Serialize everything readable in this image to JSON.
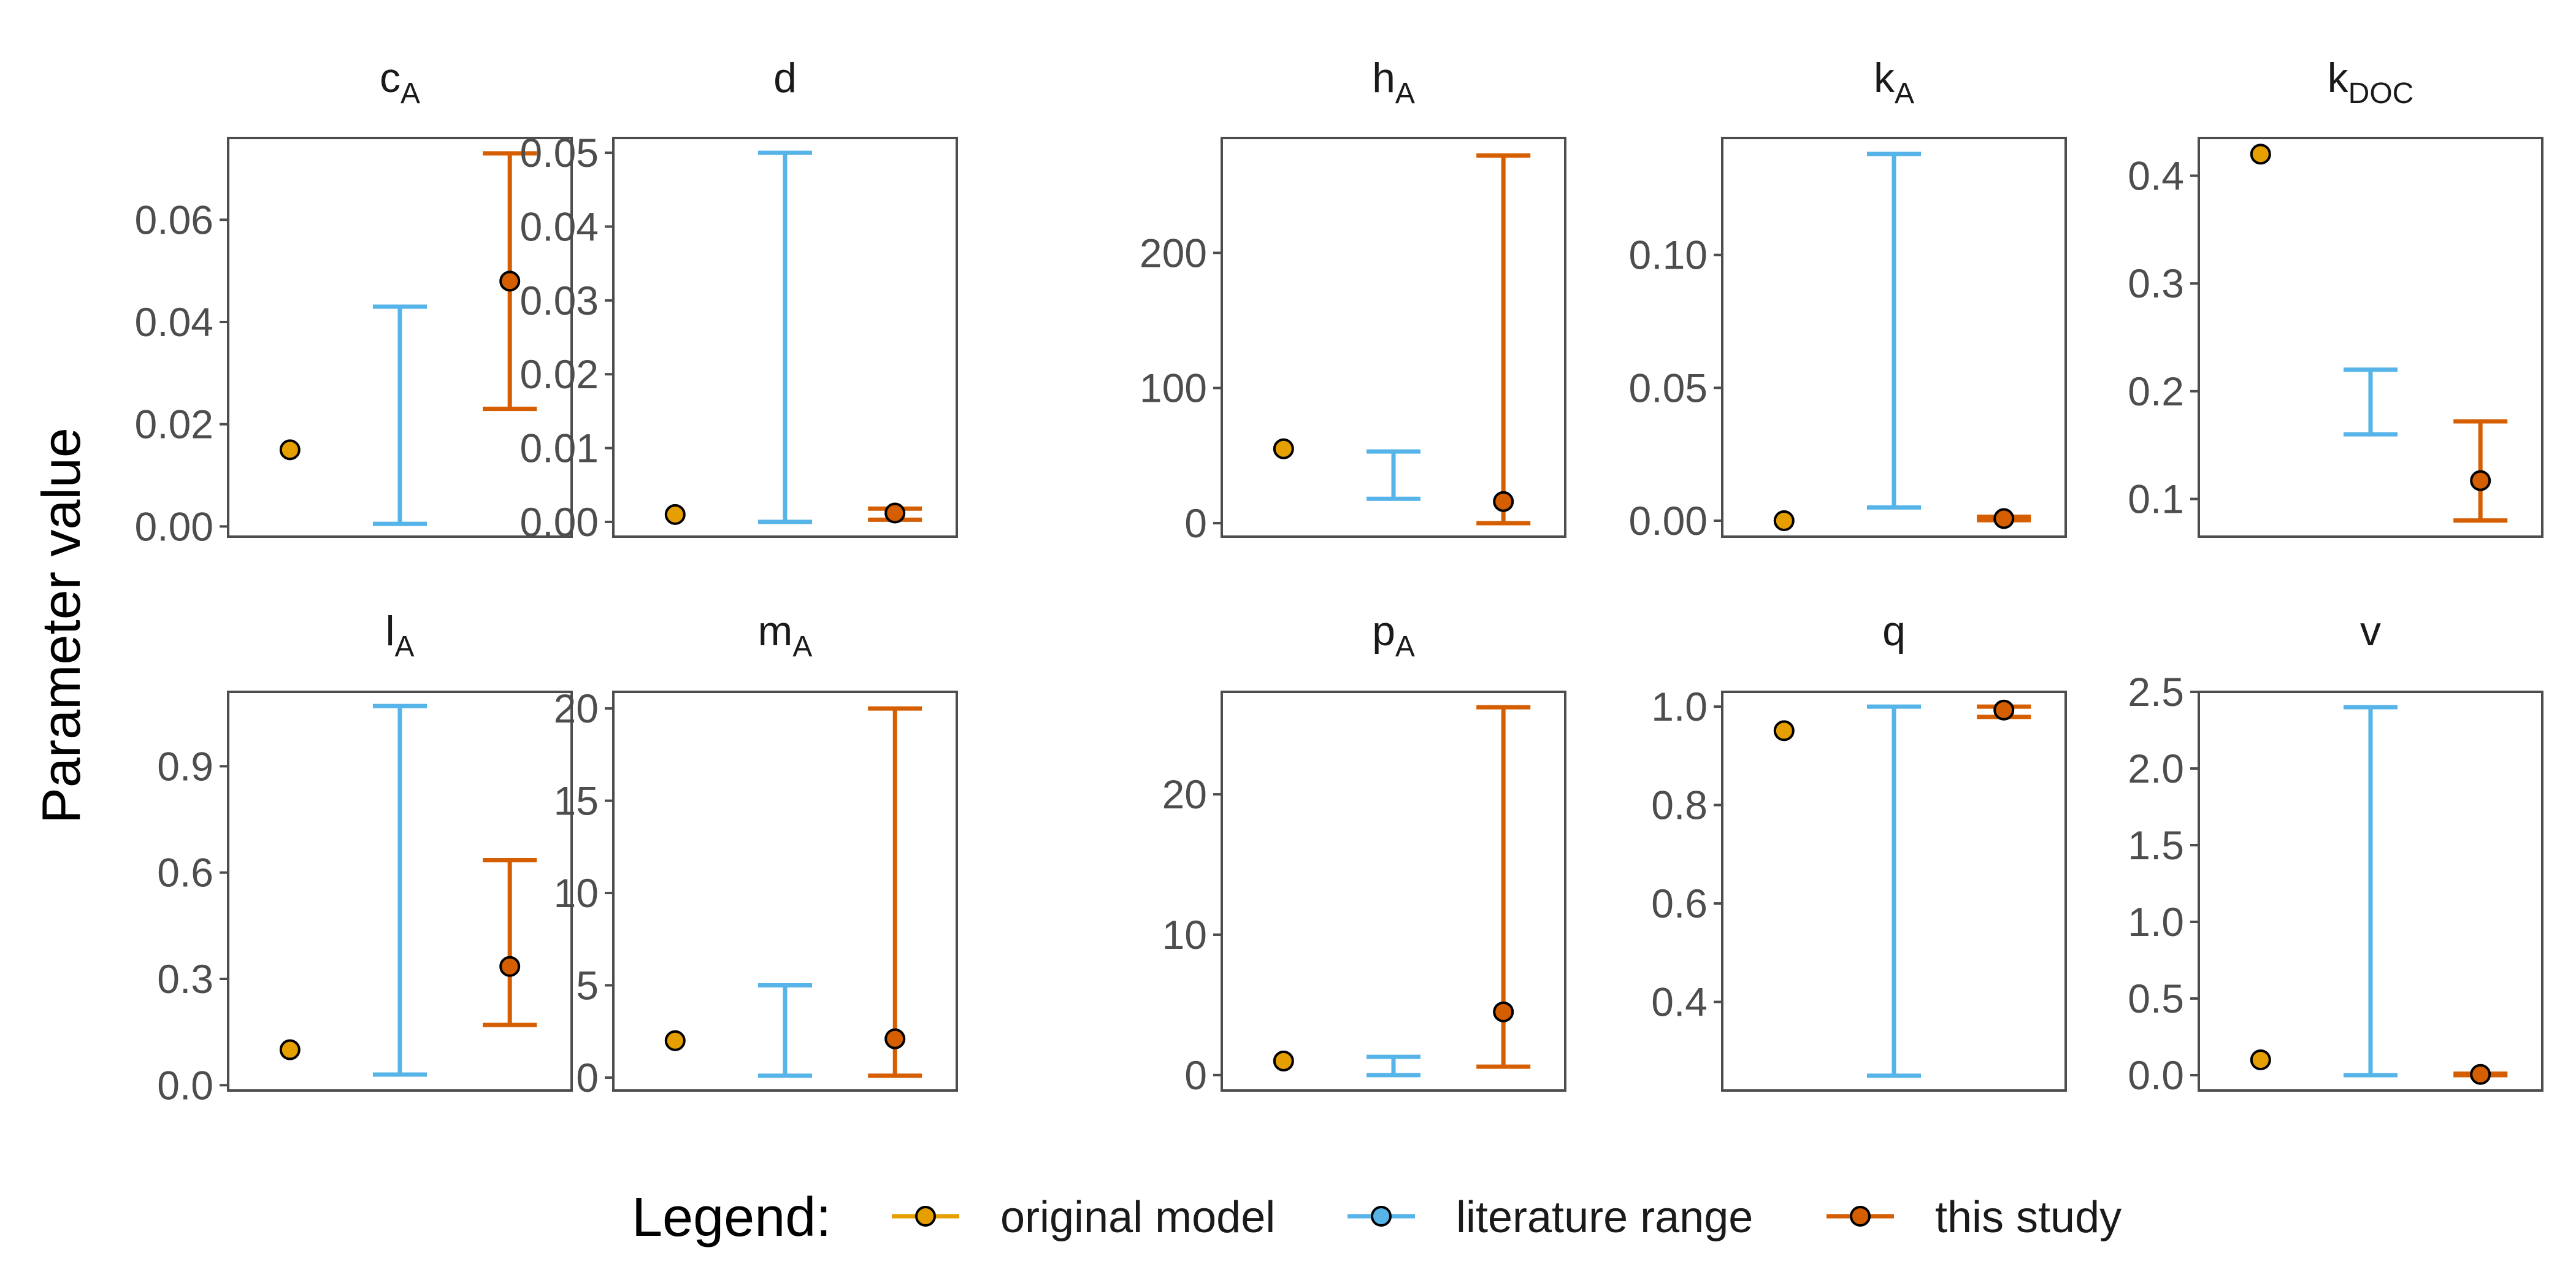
{
  "chart_data": {
    "type": "scatter",
    "ylabel": "Parameter value",
    "legend": {
      "title": "Legend:",
      "position": "bottom",
      "items": [
        {
          "key": "original",
          "label": "original model"
        },
        {
          "key": "literature",
          "label": "literature range"
        },
        {
          "key": "study",
          "label": "this study"
        }
      ]
    },
    "colors": {
      "original": "#E69F00",
      "literature": "#56B4E9",
      "study": "#D55E00",
      "axis": "#4d4d4d",
      "point_outline": "#000000"
    },
    "x_groups": [
      "original model",
      "literature range",
      "this study"
    ],
    "facets": [
      {
        "id": "cA",
        "title": "c",
        "subscript": "A",
        "ylim": [
          -0.002,
          0.076
        ],
        "ticks": [
          0.0,
          0.02,
          0.04,
          0.06
        ],
        "tick_labels": [
          "0.00",
          "0.02",
          "0.04",
          "0.06"
        ],
        "original": 0.015,
        "literature": [
          0.0005,
          0.043
        ],
        "study": {
          "value": 0.048,
          "min": 0.023,
          "max": 0.073
        }
      },
      {
        "id": "d",
        "title": "d",
        "subscript": "",
        "ylim": [
          -0.002,
          0.052
        ],
        "ticks": [
          0.0,
          0.01,
          0.02,
          0.03,
          0.04,
          0.05
        ],
        "tick_labels": [
          "0.00",
          "0.01",
          "0.02",
          "0.03",
          "0.04",
          "0.05"
        ],
        "original": 0.001,
        "literature": [
          0.0,
          0.05
        ],
        "study": {
          "value": 0.0012,
          "min": 0.0003,
          "max": 0.0018
        }
      },
      {
        "id": "hA",
        "title": "h",
        "subscript": "A",
        "ylim": [
          -10,
          285
        ],
        "ticks": [
          0,
          100,
          200
        ],
        "tick_labels": [
          "0",
          "100",
          "200"
        ],
        "original": 55,
        "literature": [
          18,
          53
        ],
        "study": {
          "value": 16,
          "min": 0,
          "max": 272
        }
      },
      {
        "id": "kA",
        "title": "k",
        "subscript": "A",
        "ylim": [
          -0.006,
          0.144
        ],
        "ticks": [
          0.0,
          0.05,
          0.1
        ],
        "tick_labels": [
          "0.00",
          "0.05",
          "0.10"
        ],
        "original": 0.0,
        "literature": [
          0.005,
          0.138
        ],
        "study": {
          "value": 0.0008,
          "min": 0.0002,
          "max": 0.0015
        }
      },
      {
        "id": "kDOC",
        "title": "k",
        "subscript": "DOC",
        "ylim": [
          0.065,
          0.435
        ],
        "ticks": [
          0.1,
          0.2,
          0.3,
          0.4
        ],
        "tick_labels": [
          "0.1",
          "0.2",
          "0.3",
          "0.4"
        ],
        "original": 0.42,
        "literature": [
          0.16,
          0.22
        ],
        "study": {
          "value": 0.117,
          "min": 0.08,
          "max": 0.172
        }
      },
      {
        "id": "lA",
        "title": "l",
        "subscript": "A",
        "ylim": [
          -0.015,
          1.11
        ],
        "ticks": [
          0.0,
          0.3,
          0.6,
          0.9
        ],
        "tick_labels": [
          "0.0",
          "0.3",
          "0.6",
          "0.9"
        ],
        "original": 0.1,
        "literature": [
          0.03,
          1.07
        ],
        "study": {
          "value": 0.335,
          "min": 0.17,
          "max": 0.635
        }
      },
      {
        "id": "mA",
        "title": "m",
        "subscript": "A",
        "ylim": [
          -0.7,
          20.9
        ],
        "ticks": [
          0,
          5,
          10,
          15,
          20
        ],
        "tick_labels": [
          "0",
          "5",
          "10",
          "15",
          "20"
        ],
        "original": 2.0,
        "literature": [
          0.1,
          5.0
        ],
        "study": {
          "value": 2.1,
          "min": 0.1,
          "max": 20.0
        }
      },
      {
        "id": "pA",
        "title": "p",
        "subscript": "A",
        "ylim": [
          -1.1,
          27.3
        ],
        "ticks": [
          0,
          10,
          20
        ],
        "tick_labels": [
          "0",
          "10",
          "20"
        ],
        "original": 1.0,
        "literature": [
          0.0,
          1.3
        ],
        "study": {
          "value": 4.5,
          "min": 0.6,
          "max": 26.2
        }
      },
      {
        "id": "q",
        "title": "q",
        "subscript": "",
        "ylim": [
          0.22,
          1.03
        ],
        "ticks": [
          0.4,
          0.6,
          0.8,
          1.0
        ],
        "tick_labels": [
          "0.4",
          "0.6",
          "0.8",
          "1.0"
        ],
        "original": 0.951,
        "literature": [
          0.25,
          1.0
        ],
        "study": {
          "value": 0.993,
          "min": 0.979,
          "max": 1.0
        }
      },
      {
        "id": "v",
        "title": "v",
        "subscript": "",
        "ylim": [
          -0.1,
          2.5
        ],
        "ticks": [
          0.0,
          0.5,
          1.0,
          1.5,
          2.0,
          2.5
        ],
        "tick_labels": [
          "0.0",
          "0.5",
          "1.0",
          "1.5",
          "2.0",
          "2.5"
        ],
        "original": 0.1,
        "literature": [
          0.0,
          2.4
        ],
        "study": {
          "value": 0.005,
          "min": 0.0,
          "max": 0.01
        }
      }
    ]
  }
}
